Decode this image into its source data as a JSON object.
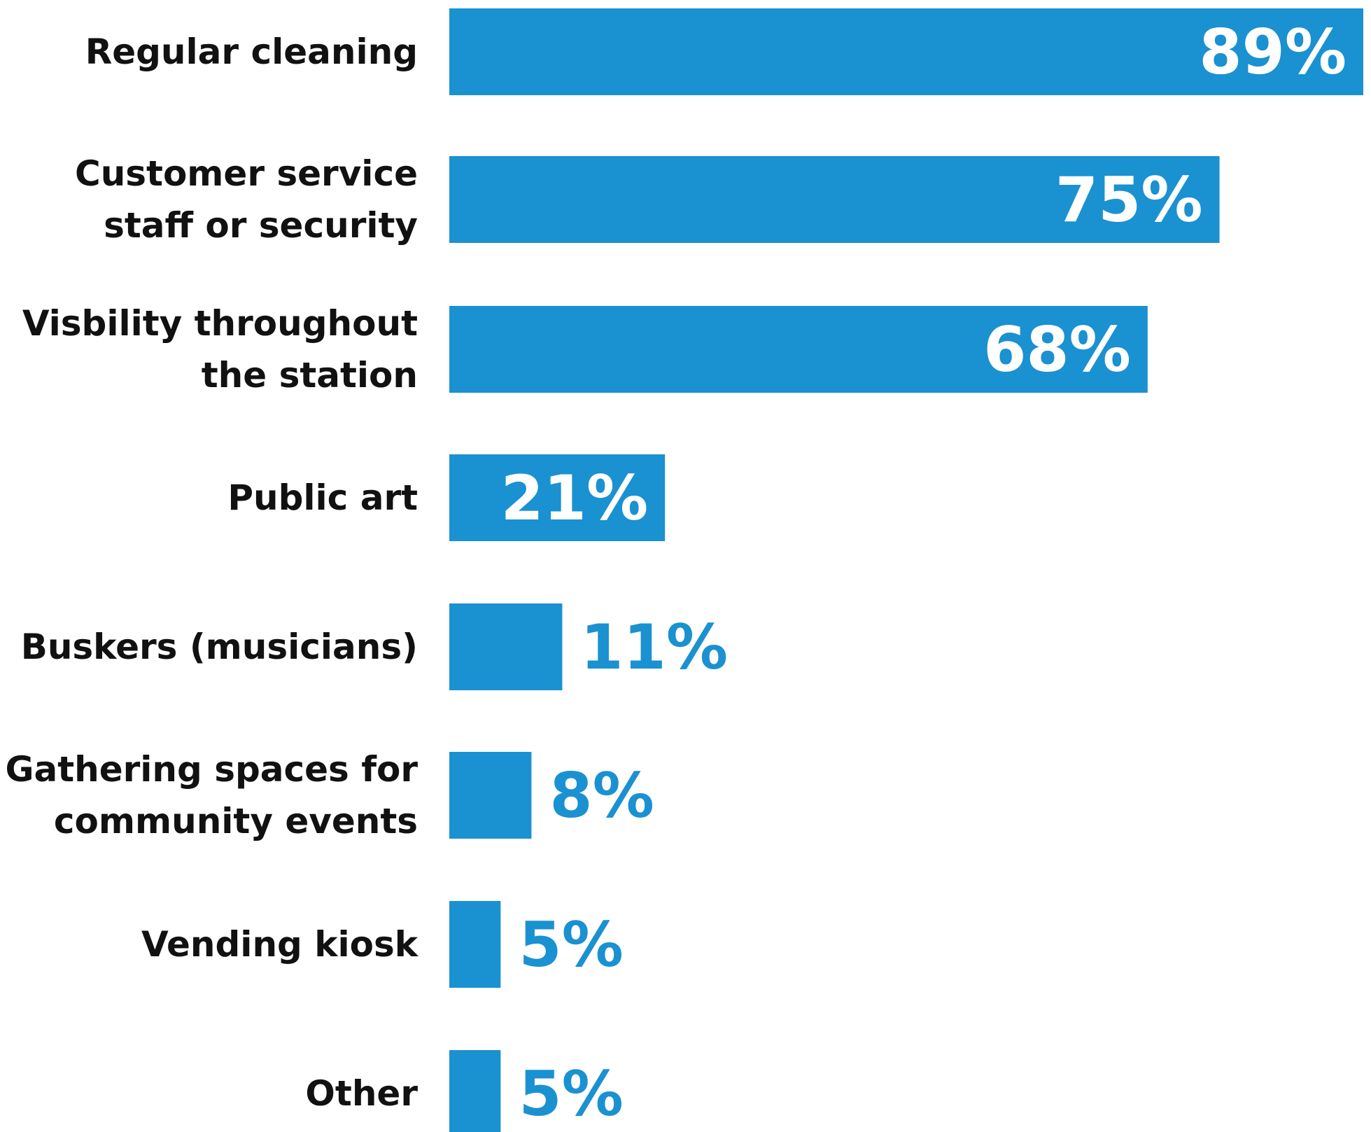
{
  "chart_data": {
    "type": "bar",
    "orientation": "horizontal",
    "categories": [
      [
        "Regular cleaning"
      ],
      [
        "Customer service",
        "staff or security"
      ],
      [
        "Visbility throughout",
        "the station"
      ],
      [
        "Public art"
      ],
      [
        "Buskers (musicians)"
      ],
      [
        "Gathering spaces for",
        "community events"
      ],
      [
        "Vending kiosk"
      ],
      [
        "Other"
      ]
    ],
    "values": [
      89,
      75,
      68,
      21,
      11,
      8,
      5,
      5
    ],
    "value_labels": [
      "89%",
      "75%",
      "68%",
      "21%",
      "11%",
      "8%",
      "5%",
      "5%"
    ],
    "xlim": [
      0,
      89
    ],
    "grid": false,
    "legend": "none",
    "colors": {
      "bar": "#1a91d1",
      "inside_label": "#ffffff",
      "outside_label": "#1a91d1",
      "category_text": "#111111"
    }
  }
}
